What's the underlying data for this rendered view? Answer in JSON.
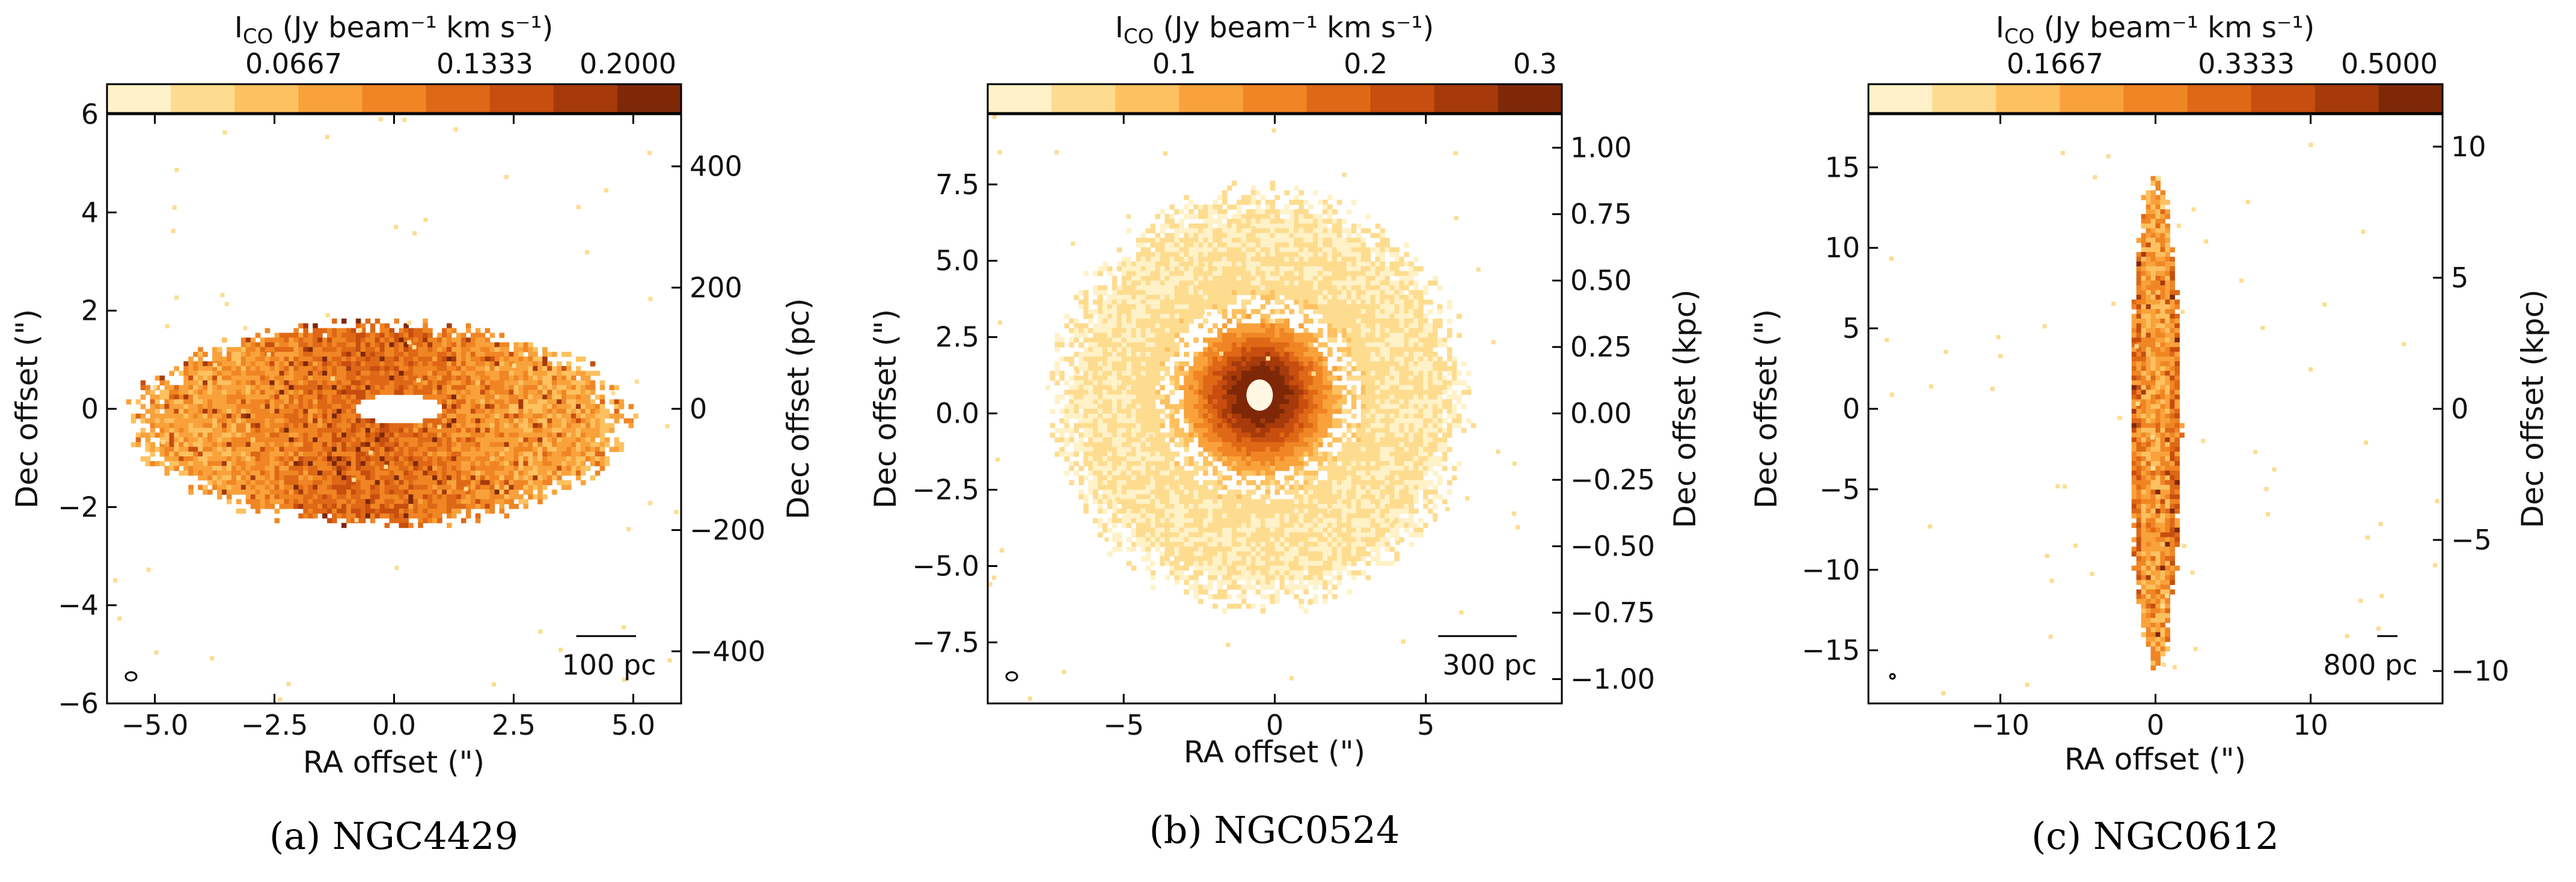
{
  "chart_data": [
    {
      "type": "heatmap",
      "panel_label": "(a) NGC4429",
      "colorbar": {
        "label": "I_CO (Jy beam⁻¹ km s⁻¹)",
        "label_main": "I",
        "label_sub": "CO",
        "label_rest": " (Jy beam⁻¹ km s⁻¹)",
        "range": [
          0,
          0.2
        ],
        "ticks": [
          0.0667,
          0.1333,
          0.2
        ],
        "tick_labels": [
          "0.0667",
          "0.1333",
          "0.2000"
        ]
      },
      "xlabel": "RA offset (\")",
      "ylabel": "Dec offset (\")",
      "y2label": "Dec offset (pc)",
      "xlim": [
        -6,
        6
      ],
      "ylim": [
        -6,
        6
      ],
      "xticks": [
        -5,
        -2.5,
        0,
        2.5,
        5
      ],
      "xtick_labels": [
        "−5.0",
        "−2.5",
        "0.0",
        "2.5",
        "5.0"
      ],
      "yticks": [
        -6,
        -4,
        -2,
        0,
        2,
        4,
        6
      ],
      "ytick_labels": [
        "−6",
        "−4",
        "−2",
        "0",
        "2",
        "4",
        "6"
      ],
      "y2ticks": [
        -400,
        -200,
        0,
        200,
        400
      ],
      "y2tick_labels": [
        "−400",
        "−200",
        "0",
        "200",
        "400"
      ],
      "y2_scale_pc_per_arcsec": 81,
      "scalebar_label": "100 pc",
      "scalebar_length_arcsec": 1.25,
      "emission": {
        "shape": "inclined-ring",
        "center": [
          -0.3,
          -0.3
        ],
        "semi_major": 5.0,
        "semi_minor": 2.0,
        "hole_center": [
          0.1,
          0.0
        ],
        "hole_radii": [
          0.9,
          0.3
        ],
        "clumps": [
          [
            4.5,
            -1.8,
            0.3
          ],
          [
            -3.4,
            -2.7,
            0.3
          ],
          [
            -4.4,
            -1.9,
            0.25
          ]
        ]
      }
    },
    {
      "type": "heatmap",
      "panel_label": "(b) NGC0524",
      "colorbar": {
        "label": "I_CO (Jy beam⁻¹ km s⁻¹)",
        "label_main": "I",
        "label_sub": "CO",
        "label_rest": " (Jy beam⁻¹ km s⁻¹)",
        "range": [
          0,
          0.3
        ],
        "ticks": [
          0.1,
          0.2,
          0.3
        ],
        "tick_labels": [
          "0.1",
          "0.2",
          "0.3"
        ]
      },
      "xlabel": "RA offset (\")",
      "ylabel": "Dec offset (\")",
      "y2label": "Dec offset (kpc)",
      "xlim": [
        -9.5,
        9.5
      ],
      "ylim": [
        -9.5,
        9.8
      ],
      "xticks": [
        -5,
        0,
        5
      ],
      "xtick_labels": [
        "−5",
        "0",
        "5"
      ],
      "yticks": [
        -7.5,
        -5,
        -2.5,
        0,
        2.5,
        5,
        7.5
      ],
      "ytick_labels": [
        "−7.5",
        "−5.0",
        "−2.5",
        "0.0",
        "2.5",
        "5.0",
        "7.5"
      ],
      "y2ticks": [
        -1,
        -0.75,
        -0.5,
        -0.25,
        0,
        0.25,
        0.5,
        0.75,
        1
      ],
      "y2tick_labels": [
        "−1.00",
        "−0.75",
        "−0.50",
        "−0.25",
        "0.00",
        "0.25",
        "0.50",
        "0.75",
        "1.00"
      ],
      "y2_scale_kpc_per_arcsec": 0.1149,
      "scalebar_label": "300 pc",
      "scalebar_length_arcsec": 2.6,
      "emission": {
        "shape": "face-on-disk",
        "center": [
          -0.5,
          0.5
        ],
        "outer_radius": 6.5,
        "core_radius": 1.5,
        "peak": [
          -0.5,
          0.6
        ]
      }
    },
    {
      "type": "heatmap",
      "panel_label": "(c) NGC0612",
      "colorbar": {
        "label": "I_CO (Jy beam⁻¹ km s⁻¹)",
        "label_main": "I",
        "label_sub": "CO",
        "label_rest": " (Jy beam⁻¹ km s⁻¹)",
        "range": [
          0,
          0.5
        ],
        "ticks": [
          0.1667,
          0.3333,
          0.5
        ],
        "tick_labels": [
          "0.1667",
          "0.3333",
          "0.5000"
        ]
      },
      "xlabel": "RA offset (\")",
      "ylabel": "Dec offset (\")",
      "y2label": "Dec offset (kpc)",
      "xlim": [
        -18.5,
        18.5
      ],
      "ylim": [
        -18.3,
        18.3
      ],
      "xticks": [
        -10,
        0,
        10
      ],
      "xtick_labels": [
        "−10",
        "0",
        "10"
      ],
      "yticks": [
        -15,
        -10,
        -5,
        0,
        5,
        10,
        15
      ],
      "ytick_labels": [
        "−15",
        "−10",
        "−5",
        "0",
        "5",
        "10",
        "15"
      ],
      "y2ticks": [
        -10,
        -5,
        0,
        5,
        10
      ],
      "y2tick_labels": [
        "−10",
        "−5",
        "0",
        "5",
        "10"
      ],
      "y2_scale_kpc_per_arcsec": 0.614,
      "scalebar_label": "800 pc",
      "scalebar_length_arcsec": 1.3,
      "emission": {
        "shape": "edge-on-disk",
        "center": [
          0,
          -1
        ],
        "semi_major": 15,
        "semi_minor": 1.6
      }
    }
  ]
}
